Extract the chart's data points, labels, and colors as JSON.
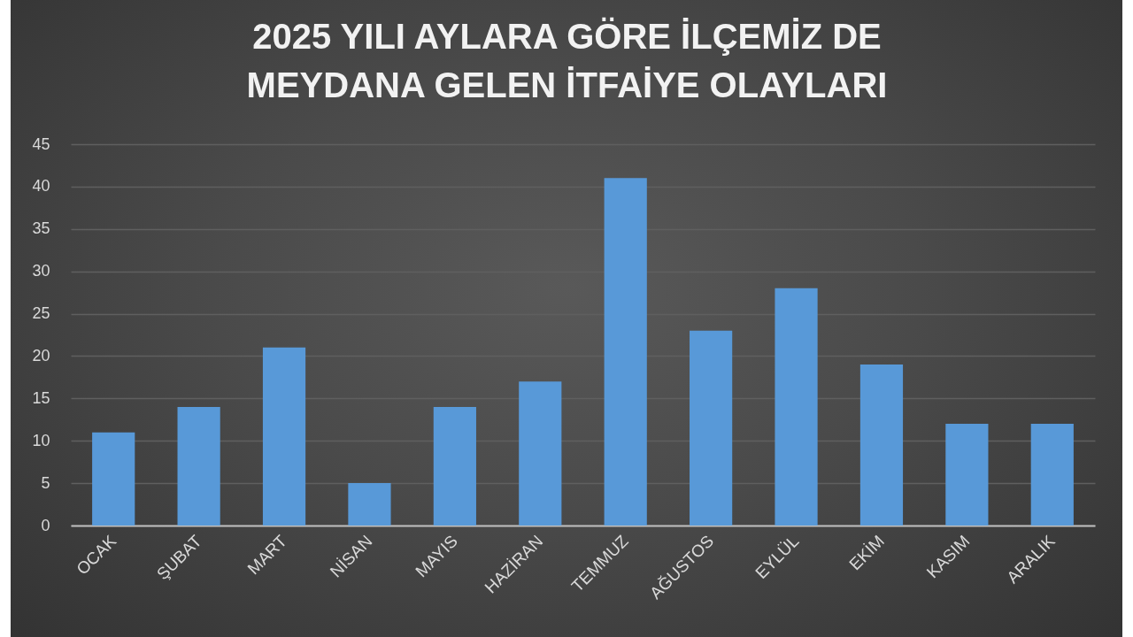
{
  "chart_data": {
    "type": "bar",
    "title": "2025 YILI AYLARA GÖRE İLÇEMİZ DE\nMEYDANA GELEN İTFAİYE OLAYLARI",
    "categories": [
      "OCAK",
      "ŞUBAT",
      "MART",
      "NİSAN",
      "MAYIS",
      "HAZİRAN",
      "TEMMUZ",
      "AĞUSTOS",
      "EYLÜL",
      "EKİM",
      "KASIM",
      "ARALIK"
    ],
    "values": [
      11,
      14,
      21,
      5,
      14,
      17,
      41,
      23,
      28,
      19,
      12,
      12
    ],
    "color": "#5899d8",
    "ylim": [
      0,
      45
    ],
    "yticks": [
      0,
      5,
      10,
      15,
      20,
      25,
      30,
      35,
      40,
      45
    ],
    "grid": "y"
  }
}
